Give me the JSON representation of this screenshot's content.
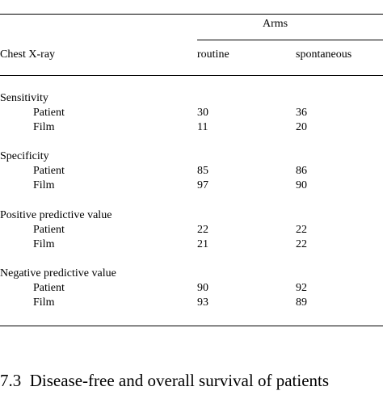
{
  "table": {
    "group_header": "Arms",
    "stub_header": "Chest X-ray",
    "columns": [
      "routine",
      "spontaneous"
    ],
    "sections": [
      {
        "title": "Sensitivity",
        "rows": [
          {
            "label": "Patient",
            "values": [
              "30",
              "36"
            ]
          },
          {
            "label": "Film",
            "values": [
              "11",
              "20"
            ]
          }
        ]
      },
      {
        "title": "Specificity",
        "rows": [
          {
            "label": "Patient",
            "values": [
              "85",
              "86"
            ]
          },
          {
            "label": "Film",
            "values": [
              "97",
              "90"
            ]
          }
        ]
      },
      {
        "title": "Positive predictive value",
        "rows": [
          {
            "label": "Patient",
            "values": [
              "22",
              "22"
            ]
          },
          {
            "label": "Film",
            "values": [
              "21",
              "22"
            ]
          }
        ]
      },
      {
        "title": "Negative predictive value",
        "rows": [
          {
            "label": "Patient",
            "values": [
              "90",
              "92"
            ]
          },
          {
            "label": "Film",
            "values": [
              "93",
              "89"
            ]
          }
        ]
      }
    ]
  },
  "section_heading": "7.3  Disease-free and overall survival of patients"
}
